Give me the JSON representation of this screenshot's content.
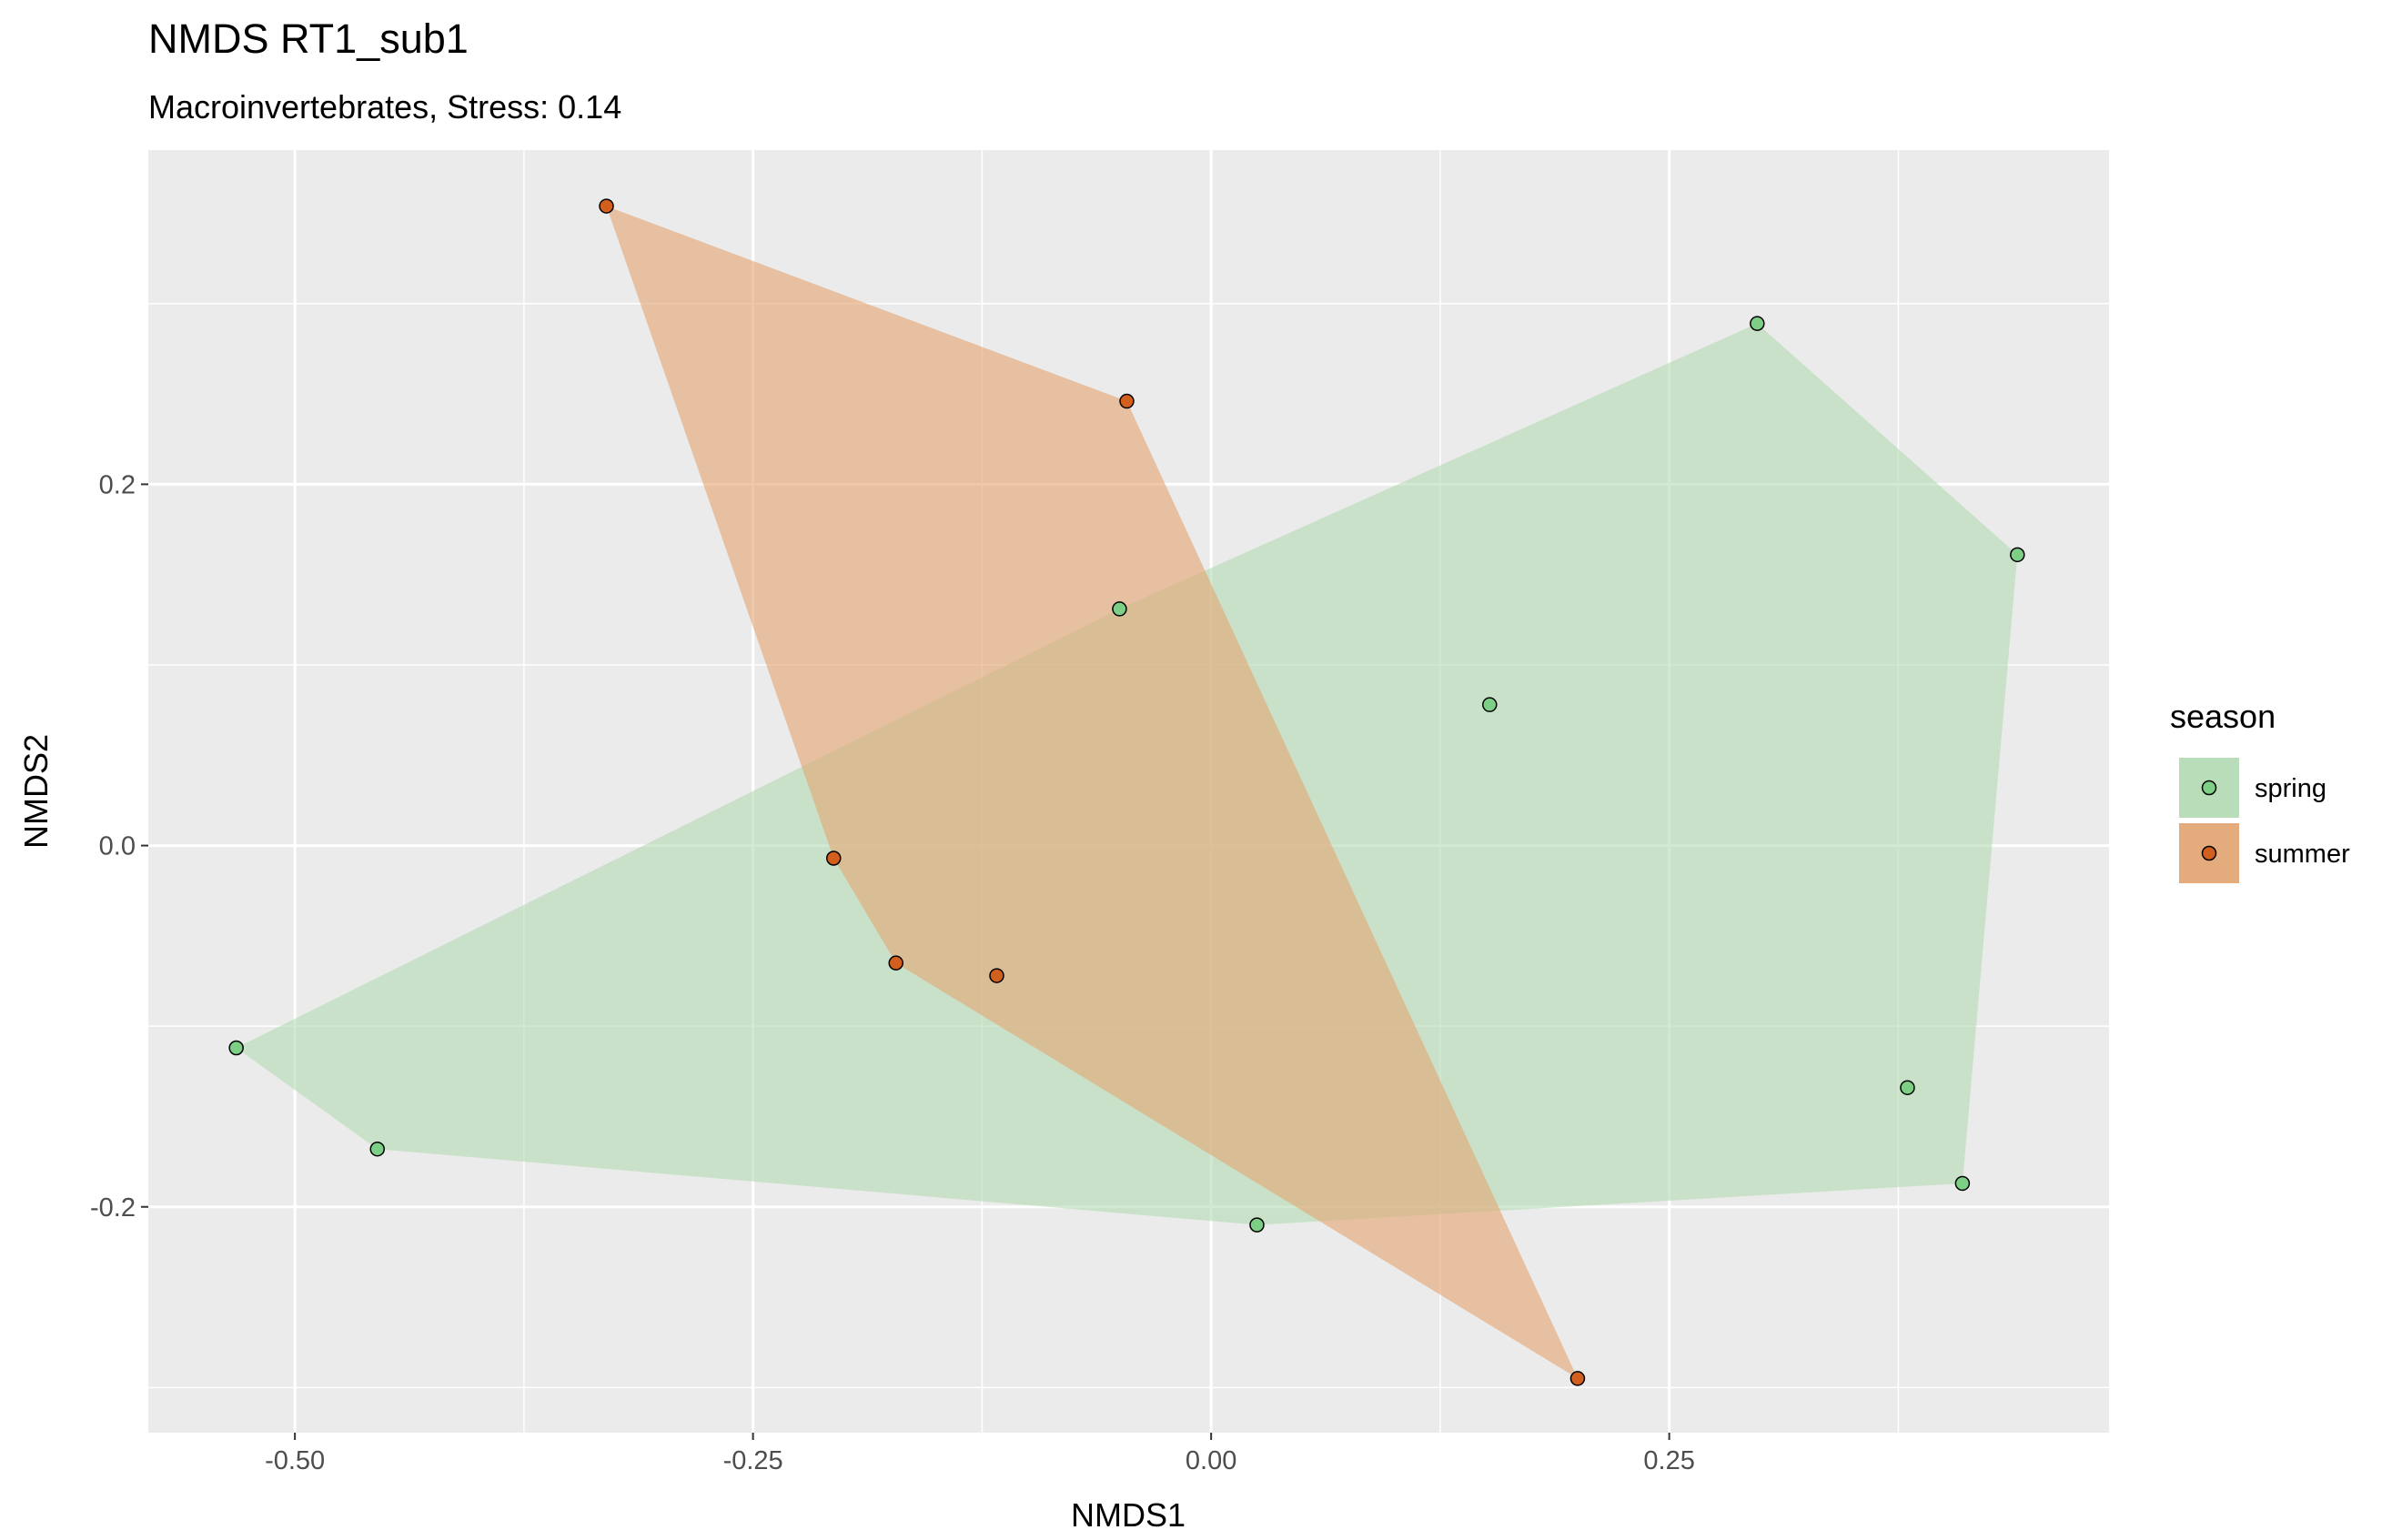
{
  "chart_data": {
    "type": "scatter",
    "title": "NMDS RT1_sub1",
    "subtitle": "Macroinvertebrates, Stress: 0.14",
    "xlabel": "NMDS1",
    "ylabel": "NMDS2",
    "xlim": [
      -0.58,
      0.49
    ],
    "ylim": [
      -0.325,
      0.385
    ],
    "x_ticks": [
      -0.5,
      -0.25,
      0.0,
      0.25
    ],
    "x_tick_labels": [
      "-0.50",
      "-0.25",
      "0.00",
      "0.25"
    ],
    "y_ticks": [
      -0.2,
      0.0,
      0.2
    ],
    "y_tick_labels": [
      "-0.2",
      "0.0",
      "0.2"
    ],
    "grid": true,
    "legend": {
      "title": "season",
      "placement": "right",
      "entries": [
        "spring",
        "summer"
      ]
    },
    "series": [
      {
        "name": "spring",
        "fill": "#b5dbb4",
        "point_color": "#7dcf86",
        "hull": true,
        "points": [
          {
            "x": -0.532,
            "y": -0.112
          },
          {
            "x": -0.455,
            "y": -0.168
          },
          {
            "x": -0.05,
            "y": 0.131
          },
          {
            "x": 0.025,
            "y": -0.21
          },
          {
            "x": 0.152,
            "y": 0.078
          },
          {
            "x": 0.298,
            "y": 0.289
          },
          {
            "x": 0.38,
            "y": -0.134
          },
          {
            "x": 0.41,
            "y": -0.187
          },
          {
            "x": 0.44,
            "y": 0.161
          }
        ]
      },
      {
        "name": "summer",
        "fill": "#e3a775",
        "point_color": "#d35f1e",
        "hull": true,
        "points": [
          {
            "x": -0.33,
            "y": 0.354
          },
          {
            "x": -0.046,
            "y": 0.246
          },
          {
            "x": -0.206,
            "y": -0.007
          },
          {
            "x": -0.172,
            "y": -0.065
          },
          {
            "x": -0.117,
            "y": -0.072
          },
          {
            "x": 0.2,
            "y": -0.295
          }
        ]
      }
    ]
  }
}
